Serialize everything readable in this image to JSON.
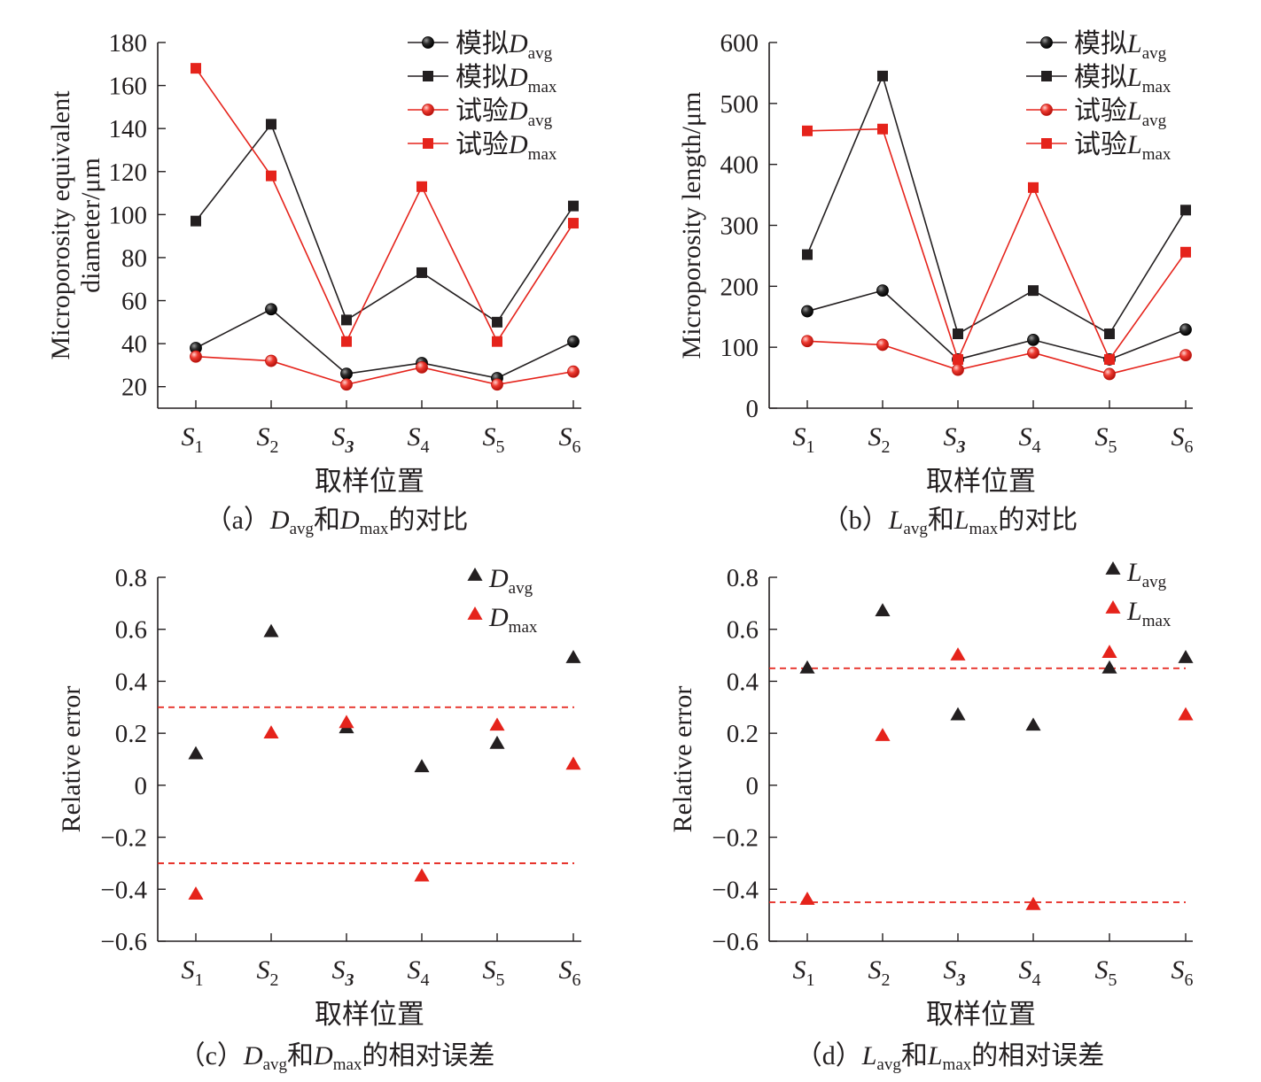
{
  "chart_data": [
    {
      "id": "a",
      "type": "line",
      "caption": "（a）Davg和Dmax的对比",
      "caption_parts": {
        "pre": "（a）",
        "s1b": "D",
        "s1s": "avg",
        "mid": "和",
        "s2b": "D",
        "s2s": "max",
        "post": "的对比"
      },
      "categories": [
        [
          "S",
          "1"
        ],
        [
          "S",
          "2"
        ],
        [
          "S",
          "3"
        ],
        [
          "S",
          "4"
        ],
        [
          "S",
          "5"
        ],
        [
          "S",
          "6"
        ]
      ],
      "xlabel": "取样位置",
      "ylabel": [
        "Microporosity equivalent",
        "diameter/μm"
      ],
      "ylim": [
        10,
        180
      ],
      "yticks": [
        20,
        40,
        60,
        80,
        100,
        120,
        140,
        160,
        180
      ],
      "legend_position": "top-right",
      "series": [
        {
          "name": "模拟Davg",
          "prefix": "模拟",
          "base": "D",
          "sub": "avg",
          "marker": "circle",
          "color": "#231f20",
          "values": [
            38,
            56,
            26,
            31,
            24,
            41
          ]
        },
        {
          "name": "模拟Dmax",
          "prefix": "模拟",
          "base": "D",
          "sub": "max",
          "marker": "square",
          "color": "#231f20",
          "values": [
            97,
            142,
            51,
            73,
            50,
            104
          ]
        },
        {
          "name": "试验Davg",
          "prefix": "试验",
          "base": "D",
          "sub": "avg",
          "marker": "circle",
          "color": "#e5231b",
          "values": [
            34,
            32,
            21,
            29,
            21,
            27
          ]
        },
        {
          "name": "试验Dmax",
          "prefix": "试验",
          "base": "D",
          "sub": "max",
          "marker": "square",
          "color": "#e5231b",
          "values": [
            168,
            118,
            41,
            113,
            41,
            96
          ]
        }
      ]
    },
    {
      "id": "b",
      "type": "line",
      "caption": "（b）Lavg和Lmax的对比",
      "caption_parts": {
        "pre": "（b）",
        "s1b": "L",
        "s1s": "avg",
        "mid": "和",
        "s2b": "L",
        "s2s": "max",
        "post": "的对比"
      },
      "categories": [
        [
          "S",
          "1"
        ],
        [
          "S",
          "2"
        ],
        [
          "S",
          "3"
        ],
        [
          "S",
          "4"
        ],
        [
          "S",
          "5"
        ],
        [
          "S",
          "6"
        ]
      ],
      "xlabel": "取样位置",
      "ylabel": [
        "Microporosity length/μm"
      ],
      "ylim": [
        0,
        600
      ],
      "yticks": [
        0,
        100,
        200,
        300,
        400,
        500,
        600
      ],
      "legend_position": "top-right",
      "series": [
        {
          "name": "模拟Lavg",
          "prefix": "模拟",
          "base": "L",
          "sub": "avg",
          "marker": "circle",
          "color": "#231f20",
          "values": [
            159,
            193,
            80,
            112,
            80,
            129
          ]
        },
        {
          "name": "模拟Lmax",
          "prefix": "模拟",
          "base": "L",
          "sub": "max",
          "marker": "square",
          "color": "#231f20",
          "values": [
            252,
            545,
            122,
            193,
            122,
            325
          ]
        },
        {
          "name": "试验Lavg",
          "prefix": "试验",
          "base": "L",
          "sub": "avg",
          "marker": "circle",
          "color": "#e5231b",
          "values": [
            110,
            104,
            63,
            91,
            56,
            87
          ]
        },
        {
          "name": "试验Lmax",
          "prefix": "试验",
          "base": "L",
          "sub": "max",
          "marker": "square",
          "color": "#e5231b",
          "values": [
            455,
            458,
            80,
            362,
            80,
            256
          ]
        }
      ]
    },
    {
      "id": "c",
      "type": "scatter",
      "caption": "（c）Davg和Dmax的相对误差",
      "caption_parts": {
        "pre": "（c）",
        "s1b": "D",
        "s1s": "avg",
        "mid": "和",
        "s2b": "D",
        "s2s": "max",
        "post": "的相对误差"
      },
      "categories": [
        [
          "S",
          "1"
        ],
        [
          "S",
          "2"
        ],
        [
          "S",
          "3"
        ],
        [
          "S",
          "4"
        ],
        [
          "S",
          "5"
        ],
        [
          "S",
          "6"
        ]
      ],
      "xlabel": "取样位置",
      "ylabel": [
        "Relative error"
      ],
      "ylim": [
        -0.6,
        0.8
      ],
      "yticks": [
        -0.6,
        -0.4,
        -0.2,
        0,
        0.2,
        0.4,
        0.6,
        0.8
      ],
      "ytick_labels": [
        "−0.6",
        "−0.4",
        "−0.2",
        "0",
        "0.2",
        "0.4",
        "0.6",
        "0.8"
      ],
      "reference_lines": [
        0.3,
        -0.3
      ],
      "legend_position": "top-right",
      "series": [
        {
          "name": "Davg",
          "prefix": "",
          "base": "D",
          "sub": "avg",
          "marker": "triangle",
          "color": "#231f20",
          "values": [
            0.12,
            0.59,
            0.22,
            0.07,
            0.16,
            0.49
          ]
        },
        {
          "name": "Dmax",
          "prefix": "",
          "base": "D",
          "sub": "max",
          "marker": "triangle",
          "color": "#e5231b",
          "values": [
            -0.42,
            0.2,
            0.24,
            -0.35,
            0.23,
            0.08
          ]
        }
      ]
    },
    {
      "id": "d",
      "type": "scatter",
      "caption": "（d）Lavg和Lmax的相对误差",
      "caption_parts": {
        "pre": "（d）",
        "s1b": "L",
        "s1s": "avg",
        "mid": "和",
        "s2b": "L",
        "s2s": "max",
        "post": "的相对误差"
      },
      "categories": [
        [
          "S",
          "1"
        ],
        [
          "S",
          "2"
        ],
        [
          "S",
          "3"
        ],
        [
          "S",
          "4"
        ],
        [
          "S",
          "5"
        ],
        [
          "S",
          "6"
        ]
      ],
      "xlabel": "取样位置",
      "ylabel": [
        "Relative error"
      ],
      "ylim": [
        -0.6,
        0.8
      ],
      "yticks": [
        -0.6,
        -0.4,
        -0.2,
        0,
        0.2,
        0.4,
        0.6,
        0.8
      ],
      "ytick_labels": [
        "−0.6",
        "−0.4",
        "−0.2",
        "0",
        "0.2",
        "0.4",
        "0.6",
        "0.8"
      ],
      "reference_lines": [
        0.45,
        -0.45
      ],
      "legend_position": "top-right",
      "series": [
        {
          "name": "Lavg",
          "prefix": "",
          "base": "L",
          "sub": "avg",
          "marker": "triangle",
          "color": "#231f20",
          "values": [
            0.45,
            0.67,
            0.27,
            0.23,
            0.45,
            0.49
          ]
        },
        {
          "name": "Lmax",
          "prefix": "",
          "base": "L",
          "sub": "max",
          "marker": "triangle",
          "color": "#e5231b",
          "values": [
            -0.44,
            0.19,
            0.5,
            -0.46,
            0.51,
            0.27
          ]
        }
      ]
    }
  ]
}
